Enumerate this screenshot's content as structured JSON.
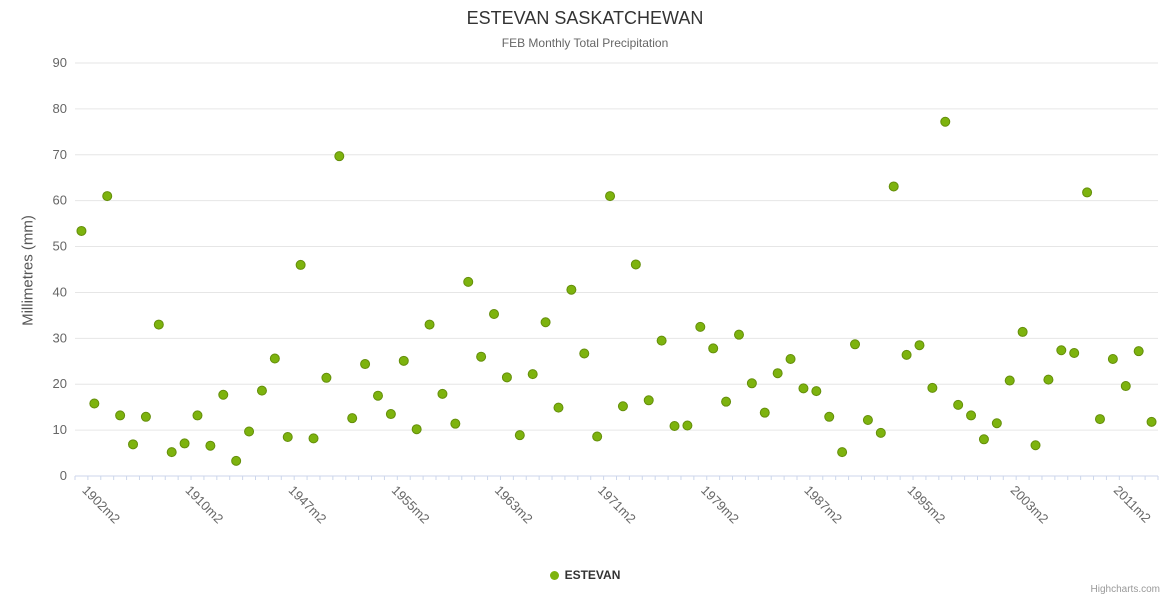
{
  "page": {
    "credits": "Highcharts.com"
  },
  "colors": {
    "series_fill": "#7db30e",
    "series_stroke": "#648e0a",
    "grid": "#e6e6e6",
    "axis_line": "#ccd6eb",
    "tick": "#ccd6eb",
    "title_text": "#333333",
    "subtitle_text": "#666666",
    "axis_text": "#666666",
    "legend_text": "#333333",
    "credits_text": "#999999"
  },
  "chart_data": {
    "type": "scatter",
    "title": "ESTEVAN SASKATCHEWAN",
    "subtitle": "FEB Monthly Total Precipitation",
    "ylabel": "Millimetres (mm)",
    "xlabel": "",
    "ylim": [
      0,
      90
    ],
    "ytick_interval": 10,
    "xtick_label_step": 8,
    "grid": "horizontal-only",
    "legend_position": "bottom-center",
    "categories": [
      "1902m2",
      "1903m2",
      "1904m2",
      "1905m2",
      "1906m2",
      "1907m2",
      "1908m2",
      "1909m2",
      "1910m2",
      "1911m2",
      "1912m2",
      "1913m2",
      "1943m2",
      "1944m2",
      "1945m2",
      "1946m2",
      "1947m2",
      "1948m2",
      "1949m2",
      "1950m2",
      "1951m2",
      "1952m2",
      "1953m2",
      "1954m2",
      "1955m2",
      "1956m2",
      "1957m2",
      "1958m2",
      "1959m2",
      "1960m2",
      "1961m2",
      "1962m2",
      "1963m2",
      "1964m2",
      "1965m2",
      "1966m2",
      "1967m2",
      "1968m2",
      "1969m2",
      "1970m2",
      "1971m2",
      "1972m2",
      "1973m2",
      "1974m2",
      "1975m2",
      "1976m2",
      "1977m2",
      "1978m2",
      "1979m2",
      "1980m2",
      "1981m2",
      "1982m2",
      "1983m2",
      "1984m2",
      "1985m2",
      "1986m2",
      "1987m2",
      "1988m2",
      "1989m2",
      "1990m2",
      "1991m2",
      "1992m2",
      "1993m2",
      "1994m2",
      "1995m2",
      "1996m2",
      "1997m2",
      "1998m2",
      "1999m2",
      "2000m2",
      "2001m2",
      "2002m2",
      "2003m2",
      "2004m2",
      "2005m2",
      "2006m2",
      "2007m2",
      "2008m2",
      "2009m2",
      "2010m2",
      "2011m2",
      "2012m2",
      "2013m2",
      "2014m2"
    ],
    "series": [
      {
        "name": "ESTEVAN",
        "values": [
          53.4,
          15.8,
          61.0,
          13.2,
          6.9,
          12.9,
          33.0,
          5.2,
          7.1,
          13.2,
          6.6,
          17.7,
          3.3,
          9.7,
          18.6,
          25.6,
          8.5,
          46.0,
          8.2,
          21.4,
          69.7,
          12.6,
          24.4,
          17.5,
          13.5,
          25.1,
          10.2,
          33.0,
          17.9,
          11.4,
          42.3,
          26.0,
          35.3,
          21.5,
          8.9,
          22.2,
          33.5,
          14.9,
          40.6,
          26.7,
          8.6,
          61.0,
          15.2,
          46.1,
          16.5,
          29.5,
          10.9,
          11.0,
          32.5,
          27.8,
          16.2,
          30.8,
          20.2,
          13.8,
          22.4,
          25.5,
          19.1,
          18.5,
          12.9,
          5.2,
          28.7,
          12.2,
          9.4,
          63.1,
          26.4,
          28.5,
          19.2,
          77.2,
          15.5,
          13.2,
          8.0,
          11.5,
          20.8,
          31.4,
          6.7,
          21.0,
          27.4,
          26.8,
          61.8,
          12.4,
          25.5,
          19.6,
          27.2,
          11.8
        ]
      }
    ]
  }
}
